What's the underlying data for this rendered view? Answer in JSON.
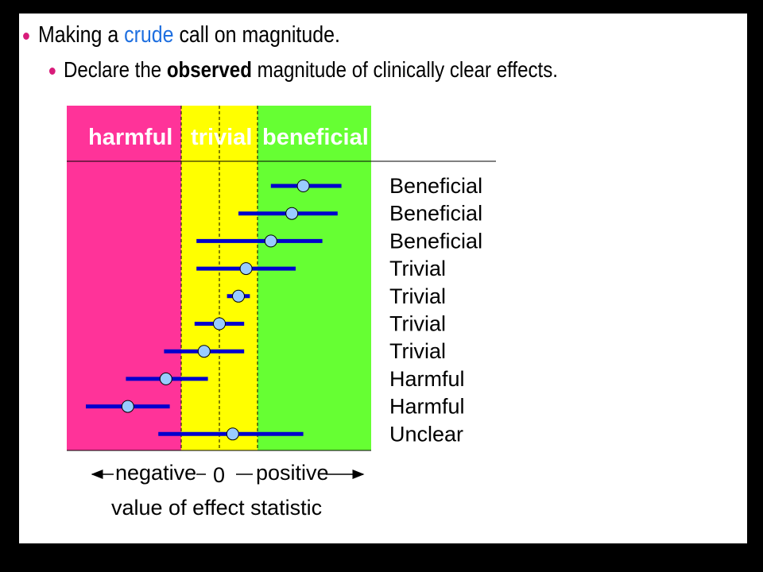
{
  "bullets": {
    "main": {
      "before": "Making a ",
      "accent": "crude",
      "after": " call on magnitude."
    },
    "sub": {
      "before": "Declare the ",
      "strong": "observed",
      "after": " magnitude of clinically clear effects."
    }
  },
  "colors": {
    "harmful": "#ff3399",
    "trivial": "#ffff00",
    "beneficial": "#66ff33",
    "interval": "#0000cc",
    "point": "#99ccff",
    "accent": "#1e6fe0"
  },
  "diagram": {
    "categories": {
      "harmful": "harmful",
      "trivial": "trivial",
      "beneficial": "beneficial"
    },
    "rows": [
      {
        "label": "Beneficial",
        "lower": 1.35,
        "est": 2.2,
        "upper": 3.2
      },
      {
        "label": "Beneficial",
        "lower": 0.5,
        "est": 1.9,
        "upper": 3.1
      },
      {
        "label": "Beneficial",
        "lower": -0.6,
        "est": 1.35,
        "upper": 2.7
      },
      {
        "label": "Trivial",
        "lower": -0.6,
        "est": 0.7,
        "upper": 2.0
      },
      {
        "label": "Trivial",
        "lower": 0.2,
        "est": 0.5,
        "upper": 0.8
      },
      {
        "label": "Trivial",
        "lower": -0.65,
        "est": 0.0,
        "upper": 0.65
      },
      {
        "label": "Trivial",
        "lower": -1.45,
        "est": -0.4,
        "upper": 0.65
      },
      {
        "label": "Harmful",
        "lower": -2.45,
        "est": -1.4,
        "upper": -0.3
      },
      {
        "label": "Harmful",
        "lower": -3.5,
        "est": -2.4,
        "upper": -1.3
      },
      {
        "label": "Unclear",
        "lower": -1.6,
        "est": 0.35,
        "upper": 2.2
      }
    ],
    "thresholds": [
      -1.0,
      1.0
    ],
    "axis": {
      "negative": "negative",
      "zero": "0",
      "positive": "positive",
      "title": "value of effect statistic"
    }
  }
}
